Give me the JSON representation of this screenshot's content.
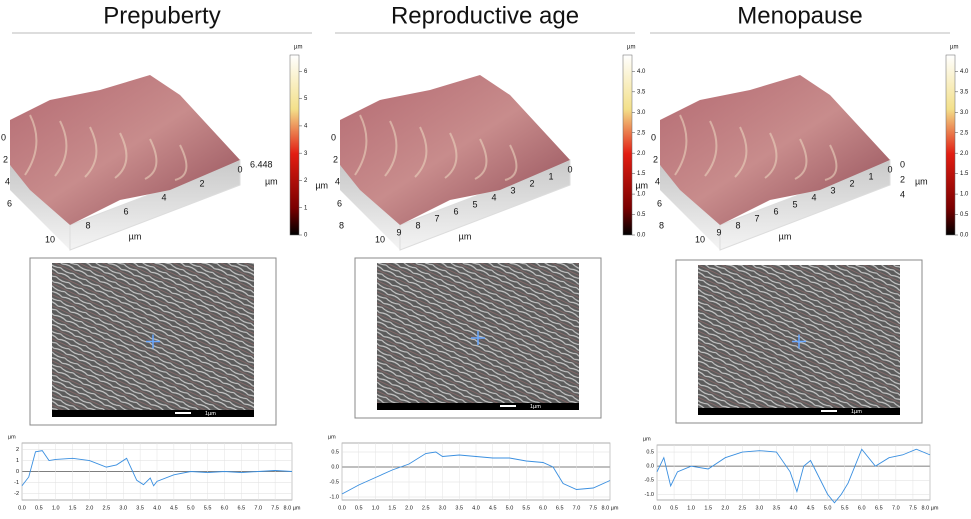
{
  "panels": [
    {
      "title": "Prepuberty",
      "surface_axes": {
        "left": [
          "0",
          "2",
          "4",
          "6"
        ],
        "left_unit": "µm",
        "bottom": [
          "10",
          "8",
          "6",
          "4",
          "2",
          "0"
        ],
        "bottom_unit": "µm",
        "right": [
          "6.448"
        ],
        "right_unit": "µm"
      },
      "colorbar": {
        "unit": "µm",
        "lim": [
          0,
          6.6
        ],
        "ticks": [
          0,
          1,
          2,
          3,
          4,
          5,
          6
        ]
      },
      "sem_scale": "1µm",
      "profile": {
        "type": "line",
        "unit": "µm",
        "color": "#3a8fe0",
        "x": [
          0,
          0.2,
          0.4,
          0.6,
          0.8,
          1.0,
          1.5,
          2.0,
          2.5,
          2.8,
          3.1,
          3.4,
          3.6,
          3.8,
          3.9,
          4.0,
          4.5,
          5.0,
          5.5,
          6.0,
          6.5,
          7.0,
          7.5,
          8.0
        ],
        "values": [
          -1.3,
          -0.5,
          1.8,
          1.9,
          1.0,
          1.1,
          1.2,
          1.0,
          0.4,
          0.6,
          1.2,
          -0.8,
          -1.2,
          -0.6,
          -1.3,
          -0.9,
          -0.3,
          0.0,
          -0.1,
          0.0,
          -0.1,
          0.0,
          0.1,
          0.0
        ],
        "xlim": [
          0,
          8
        ],
        "ylim": [
          -2.6,
          2.6
        ],
        "yticks": [
          2,
          1,
          0,
          -1,
          -2
        ],
        "xticks": [
          {
            "value": 0,
            "label": "0.0"
          },
          {
            "value": 0.5,
            "label": "0.5"
          },
          {
            "value": 1,
            "label": "1.0"
          },
          {
            "value": 1.5,
            "label": "1.5"
          },
          {
            "value": 2,
            "label": "2.0"
          },
          {
            "value": 2.5,
            "label": "2.5"
          },
          {
            "value": 3,
            "label": "3.0"
          },
          {
            "value": 3.5,
            "label": "3.5"
          },
          {
            "value": 4,
            "label": "4.0"
          },
          {
            "value": 4.5,
            "label": "4.5"
          },
          {
            "value": 5,
            "label": "5.0"
          },
          {
            "value": 5.5,
            "label": "5.5"
          },
          {
            "value": 6,
            "label": "6.0"
          },
          {
            "value": 6.5,
            "label": "6.5"
          },
          {
            "value": 7,
            "label": "7.0"
          },
          {
            "value": 7.5,
            "label": "7.5"
          },
          {
            "value": 8,
            "label": "8.0 µm"
          }
        ]
      }
    },
    {
      "title": "Reproductive age",
      "surface_axes": {
        "left": [
          "0",
          "2",
          "4",
          "6",
          "8"
        ],
        "left_unit": "µm",
        "bottom": [
          "10",
          "9",
          "8",
          "7",
          "6",
          "5",
          "4",
          "3",
          "2",
          "1",
          "0"
        ],
        "bottom_unit": "µm",
        "right": [],
        "right_unit": ""
      },
      "colorbar": {
        "unit": "µm",
        "lim": [
          0,
          4.4
        ],
        "ticks": [
          {
            "value": 0,
            "label": "0.0"
          },
          {
            "value": 0.5,
            "label": "0.5"
          },
          {
            "value": 1,
            "label": "1.0"
          },
          {
            "value": 1.5,
            "label": "1.5"
          },
          {
            "value": 2,
            "label": "2.0"
          },
          {
            "value": 2.5,
            "label": "2.5"
          },
          {
            "value": 3,
            "label": "3.0"
          },
          {
            "value": 3.5,
            "label": "3.5"
          },
          {
            "value": 4,
            "label": "4.0"
          }
        ]
      },
      "sem_scale": "1µm",
      "profile": {
        "type": "line",
        "unit": "µm",
        "color": "#3a8fe0",
        "x": [
          0,
          0.5,
          1,
          1.5,
          2,
          2.5,
          2.8,
          3,
          3.5,
          4,
          4.5,
          5,
          5.5,
          6,
          6.3,
          6.6,
          7,
          7.5,
          8
        ],
        "values": [
          -0.9,
          -0.6,
          -0.35,
          -0.1,
          0.1,
          0.45,
          0.5,
          0.35,
          0.4,
          0.35,
          0.3,
          0.3,
          0.2,
          0.15,
          0,
          -0.55,
          -0.75,
          -0.7,
          -0.45
        ],
        "xlim": [
          0,
          8
        ],
        "ylim": [
          -1.1,
          0.8
        ],
        "yticks": [
          {
            "value": 0.5,
            "label": "0.5"
          },
          {
            "value": 0,
            "label": "0.0"
          },
          {
            "value": -0.5,
            "label": "-0.5"
          },
          {
            "value": -1,
            "label": "-1.0"
          }
        ],
        "xticks": [
          {
            "value": 0,
            "label": "0.0"
          },
          {
            "value": 0.5,
            "label": "0.5"
          },
          {
            "value": 1,
            "label": "1.0"
          },
          {
            "value": 1.5,
            "label": "1.5"
          },
          {
            "value": 2,
            "label": "2.0"
          },
          {
            "value": 2.5,
            "label": "2.5"
          },
          {
            "value": 3,
            "label": "3.0"
          },
          {
            "value": 3.5,
            "label": "3.5"
          },
          {
            "value": 4,
            "label": "4.0"
          },
          {
            "value": 4.5,
            "label": "4.5"
          },
          {
            "value": 5,
            "label": "5.0"
          },
          {
            "value": 5.5,
            "label": "5.5"
          },
          {
            "value": 6,
            "label": "6.0"
          },
          {
            "value": 6.5,
            "label": "6.5"
          },
          {
            "value": 7,
            "label": "7.0"
          },
          {
            "value": 7.5,
            "label": "7.5"
          },
          {
            "value": 8,
            "label": "8.0 µm"
          }
        ]
      }
    },
    {
      "title": "Menopause",
      "surface_axes": {
        "left": [
          "0",
          "2",
          "4",
          "6",
          "8"
        ],
        "left_unit": "µm",
        "bottom": [
          "10",
          "9",
          "8",
          "7",
          "6",
          "5",
          "4",
          "3",
          "2",
          "1",
          "0"
        ],
        "bottom_unit": "µm",
        "right": [
          "4",
          "2",
          "0"
        ],
        "right_unit": "µm"
      },
      "colorbar": {
        "unit": "µm",
        "lim": [
          0,
          4.4
        ],
        "ticks": [
          {
            "value": 0,
            "label": "0.0"
          },
          {
            "value": 0.5,
            "label": "0.5"
          },
          {
            "value": 1,
            "label": "1.0"
          },
          {
            "value": 1.5,
            "label": "1.5"
          },
          {
            "value": 2,
            "label": "2.0"
          },
          {
            "value": 2.5,
            "label": "2.5"
          },
          {
            "value": 3,
            "label": "3.0"
          },
          {
            "value": 3.5,
            "label": "3.5"
          },
          {
            "value": 4,
            "label": "4.0"
          }
        ]
      },
      "sem_scale": "1µm",
      "profile": {
        "type": "line",
        "unit": "µm",
        "color": "#3a8fe0",
        "x": [
          0,
          0.2,
          0.4,
          0.6,
          1,
          1.5,
          2,
          2.5,
          3,
          3.5,
          3.9,
          4.1,
          4.3,
          4.5,
          5,
          5.2,
          5.4,
          5.6,
          6,
          6.4,
          6.8,
          7.2,
          7.6,
          8
        ],
        "values": [
          -0.2,
          0.3,
          -0.7,
          -0.2,
          0.0,
          -0.1,
          0.3,
          0.5,
          0.55,
          0.5,
          -0.2,
          -0.9,
          0.0,
          0.2,
          -1.0,
          -1.3,
          -1.0,
          -0.6,
          0.6,
          0.0,
          0.3,
          0.4,
          0.6,
          0.4
        ],
        "xlim": [
          0,
          8
        ],
        "ylim": [
          -1.2,
          0.75
        ],
        "yticks": [
          {
            "value": 0.5,
            "label": "0.5"
          },
          {
            "value": 0,
            "label": "0.0"
          },
          {
            "value": -0.5,
            "label": "-0.5"
          },
          {
            "value": -1,
            "label": "-1.0"
          }
        ],
        "xticks": [
          {
            "value": 0,
            "label": "0.0"
          },
          {
            "value": 0.5,
            "label": "0.5"
          },
          {
            "value": 1,
            "label": "1.0"
          },
          {
            "value": 1.5,
            "label": "1.5"
          },
          {
            "value": 2,
            "label": "2.0"
          },
          {
            "value": 2.5,
            "label": "2.5"
          },
          {
            "value": 3,
            "label": "3.0"
          },
          {
            "value": 3.5,
            "label": "3.5"
          },
          {
            "value": 4,
            "label": "4.0"
          },
          {
            "value": 4.5,
            "label": "4.5"
          },
          {
            "value": 5,
            "label": "5.0"
          },
          {
            "value": 5.5,
            "label": "5.5"
          },
          {
            "value": 6,
            "label": "6.0"
          },
          {
            "value": 6.5,
            "label": "6.5"
          },
          {
            "value": 7,
            "label": "7.0"
          },
          {
            "value": 7.5,
            "label": "7.5"
          },
          {
            "value": 8,
            "label": "8.0 µm"
          }
        ]
      }
    }
  ]
}
